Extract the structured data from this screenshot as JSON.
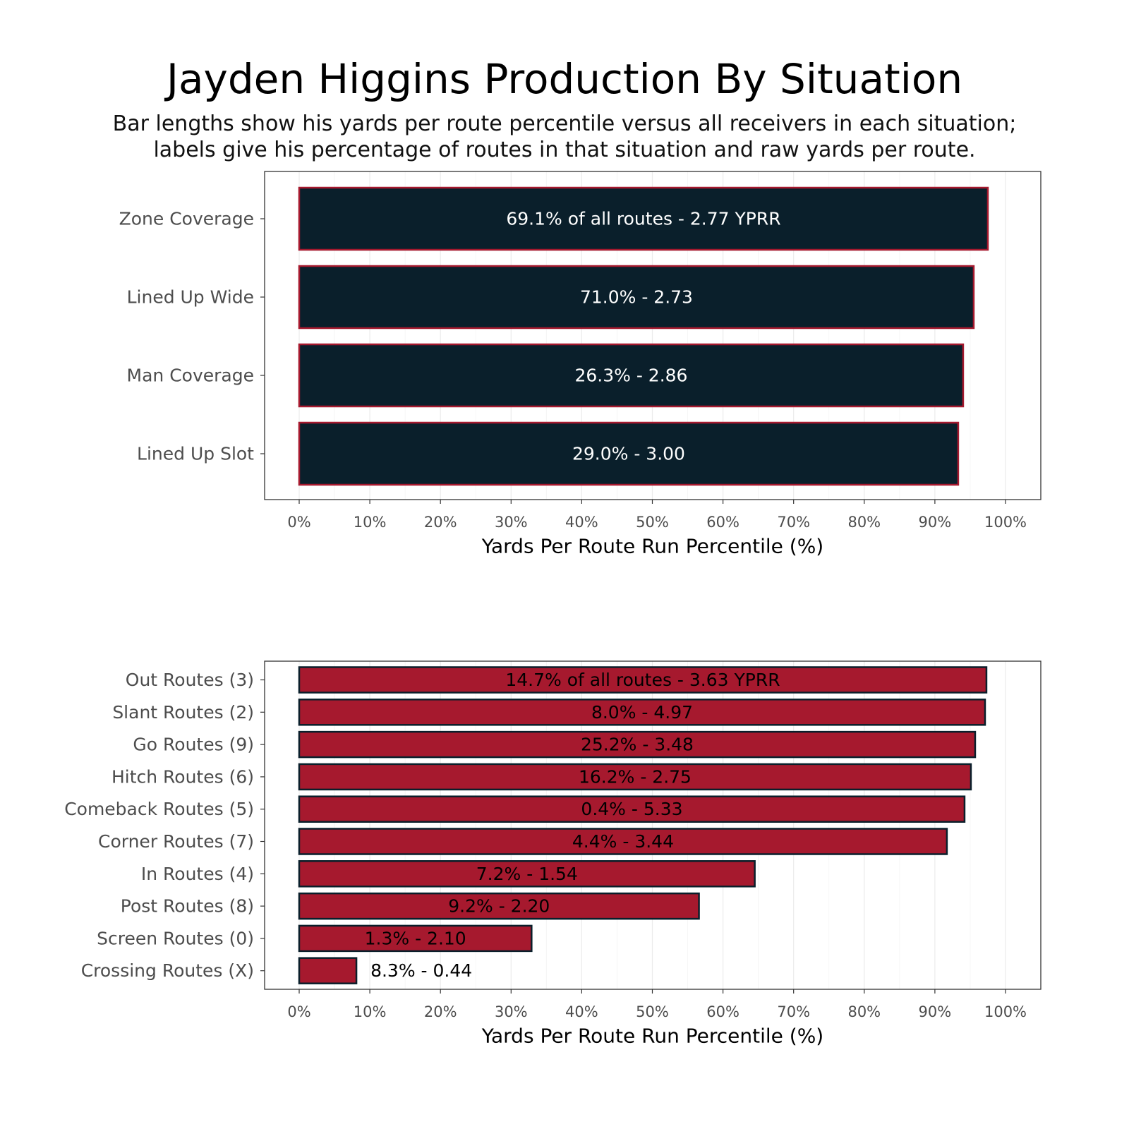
{
  "title": "Jayden Higgins Production By Situation",
  "subtitle_lines": [
    "Bar lengths show his yards per route percentile versus all receivers in each situation;",
    "labels give his percentage of routes in that situation and raw yards per route."
  ],
  "colors": {
    "navy": "#0a1f2b",
    "red": "#a6192e"
  },
  "chart_data": [
    {
      "type": "bar",
      "orientation": "horizontal",
      "xlabel": "Yards Per Route Run Percentile (%)",
      "xlim": [
        0,
        100
      ],
      "xticks": [
        "0%",
        "10%",
        "20%",
        "30%",
        "40%",
        "50%",
        "60%",
        "70%",
        "80%",
        "90%",
        "100%"
      ],
      "grid": true,
      "bar_fill": "#0a1f2b",
      "bar_outline": "#a6192e",
      "label_color": "#ffffff",
      "categories": [
        "Zone Coverage",
        "Lined Up Wide",
        "Man Coverage",
        "Lined Up Slot"
      ],
      "values": [
        97.5,
        95.5,
        94,
        93.3
      ],
      "labels": [
        "69.1% of all routes - 2.77 YPRR",
        "71.0% - 2.73",
        "26.3% - 2.86",
        "29.0% - 3.00"
      ]
    },
    {
      "type": "bar",
      "orientation": "horizontal",
      "xlabel": "Yards Per Route Run Percentile (%)",
      "xlim": [
        0,
        100
      ],
      "xticks": [
        "0%",
        "10%",
        "20%",
        "30%",
        "40%",
        "50%",
        "60%",
        "70%",
        "80%",
        "90%",
        "100%"
      ],
      "grid": true,
      "bar_fill": "#a6192e",
      "bar_outline": "#0a1f2b",
      "label_color": "#000000",
      "categories": [
        "Out Routes (3)",
        "Slant Routes (2)",
        "Go Routes (9)",
        "Hitch Routes (6)",
        "Comeback Routes (5)",
        "Corner Routes (7)",
        "In Routes (4)",
        "Post Routes (8)",
        "Screen Routes (0)",
        "Crossing Routes (X)"
      ],
      "values": [
        97.3,
        97.1,
        95.7,
        95.1,
        94.2,
        91.7,
        64.5,
        56.6,
        32.9,
        8.1
      ],
      "labels": [
        "14.7% of all routes - 3.63 YPRR",
        "8.0% - 4.97",
        "25.2% - 3.48",
        "16.2% - 2.75",
        "0.4% - 5.33",
        "4.4% - 3.44",
        "7.2% - 1.54",
        "9.2% - 2.20",
        "1.3% - 2.10",
        "8.3% - 0.44"
      ]
    }
  ]
}
